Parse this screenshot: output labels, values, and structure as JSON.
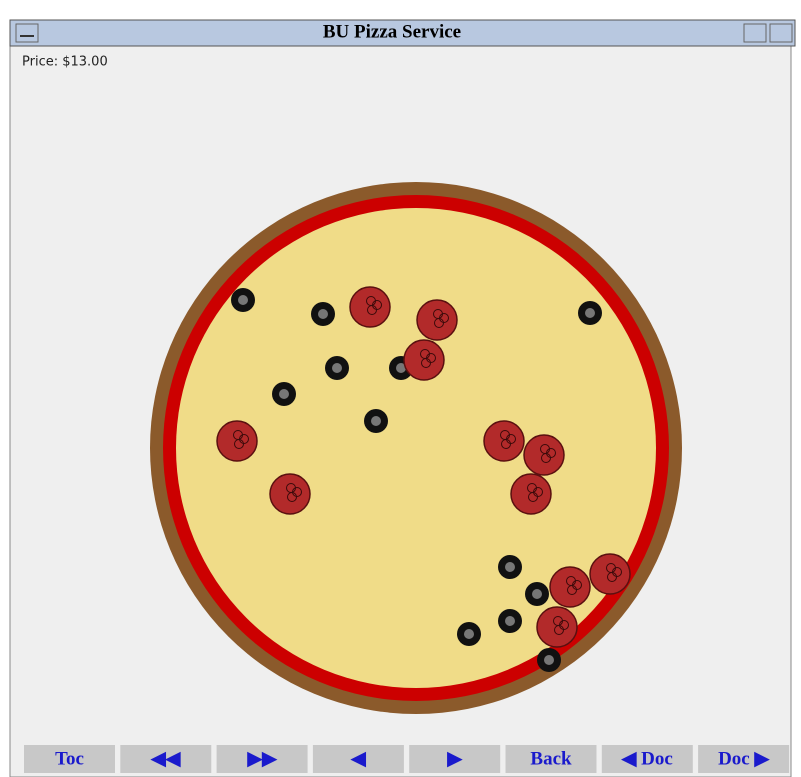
{
  "window": {
    "title": "BU Pizza Service"
  },
  "price": "Price: $13.00",
  "buttons": [
    "Toc",
    "◀◀",
    "▶▶",
    "◀",
    "▶",
    "Back",
    "◀ Doc",
    "Doc ▶"
  ]
}
